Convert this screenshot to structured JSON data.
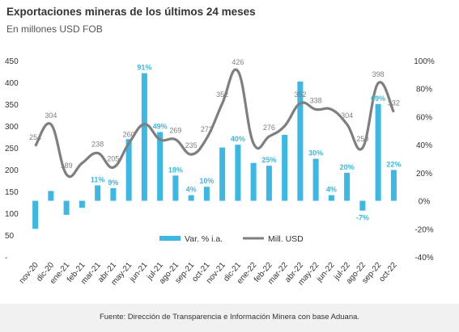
{
  "header": {
    "title": "Exportaciones mineras de los últimos 24 meses",
    "subtitle": "En millones USD FOB"
  },
  "footer": {
    "source": "Fuente: Dirección de Transparencia e Información Minera con base Aduana."
  },
  "colors": {
    "bar": "#3cb8e4",
    "line": "#7f7f7f",
    "text": "#333333",
    "bar_label": "#3cb8e4",
    "line_label": "#7f7f7f"
  },
  "chart_data": {
    "type": "bar",
    "title": "Exportaciones mineras de los últimos 24 meses",
    "subtitle": "En millones USD FOB",
    "categories": [
      "nov-20",
      "dic-20",
      "ene-21",
      "feb-21",
      "mar-21",
      "abr-21",
      "may-21",
      "jun-21",
      "jul-21",
      "ago-21",
      "sep-21",
      "oct-21",
      "nov-21",
      "dic-21",
      "ene-22",
      "feb-22",
      "mar-22",
      "abr-22",
      "may-22",
      "jun-22",
      "jul-22",
      "ago-22",
      "sep-22",
      "oct-22"
    ],
    "y_left": {
      "ticks": [
        "450",
        "400",
        "350",
        "300",
        "250",
        "200",
        "150",
        "100",
        "50",
        "-"
      ],
      "range": [
        0,
        450
      ]
    },
    "y_right": {
      "ticks": [
        "100%",
        "80%",
        "60%",
        "40%",
        "20%",
        "0%",
        "-20%",
        "-40%"
      ],
      "range": [
        -40,
        100
      ]
    },
    "grid": false,
    "legend_position": "bottom-center",
    "series": [
      {
        "name": "Var. % i.a.",
        "type": "bar",
        "axis": "right",
        "values": [
          -20,
          7,
          -10,
          -5,
          11,
          9,
          44,
          91,
          49,
          18,
          4,
          10,
          38,
          40,
          27,
          25,
          47,
          85,
          30,
          4,
          20,
          -7,
          69,
          22
        ],
        "labels": [
          "",
          "",
          "",
          "",
          "11%",
          "9%",
          "",
          "91%",
          "49%",
          "18%",
          "4%",
          "10%",
          "",
          "40%",
          "",
          "25%",
          "",
          "",
          "30%",
          "4%",
          "20%",
          "-7%",
          "69%",
          "22%"
        ]
      },
      {
        "name": "Mill. USD",
        "type": "line",
        "axis": "left",
        "values": [
          254,
          304,
          189,
          215,
          238,
          205,
          260,
          304,
          269,
          269,
          235,
          272,
          352,
          426,
          260,
          276,
          300,
          352,
          338,
          338,
          304,
          250,
          398,
          332
        ],
        "labels": [
          "254",
          "304",
          "189",
          "",
          "238",
          "205",
          "260",
          "",
          "",
          "269",
          "235",
          "272",
          "352",
          "426",
          "",
          "276",
          "",
          "352",
          "338",
          "",
          "304",
          "250",
          "398",
          "332"
        ]
      }
    ]
  }
}
